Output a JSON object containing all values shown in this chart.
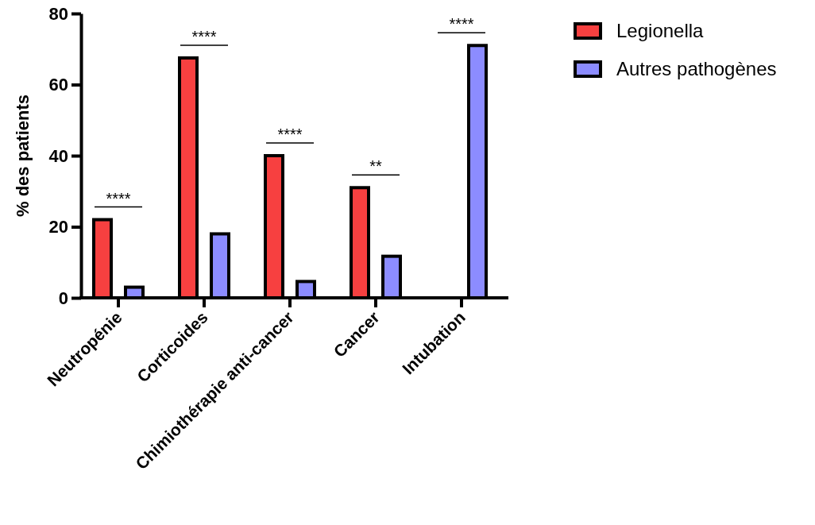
{
  "chart_data": {
    "type": "bar",
    "ylabel": "% des patients",
    "categories": [
      "Neutropénie",
      "Corticoides",
      "Chimiothérapie anti-cancer",
      "Cancer",
      "Intubation"
    ],
    "series": [
      {
        "name": "Legionella",
        "color": "#f74040",
        "values": [
          22,
          67.5,
          40,
          31,
          0
        ]
      },
      {
        "name": "Autres pathogènes",
        "color": "#8c8cff",
        "values": [
          3,
          18,
          4.6,
          11.7,
          71
        ]
      }
    ],
    "ylim": [
      0,
      80
    ],
    "yticks": [
      0,
      20,
      40,
      60,
      80
    ],
    "grid": false,
    "legend": "right",
    "annotations": [
      "****",
      "****",
      "****",
      "**",
      "****"
    ]
  }
}
